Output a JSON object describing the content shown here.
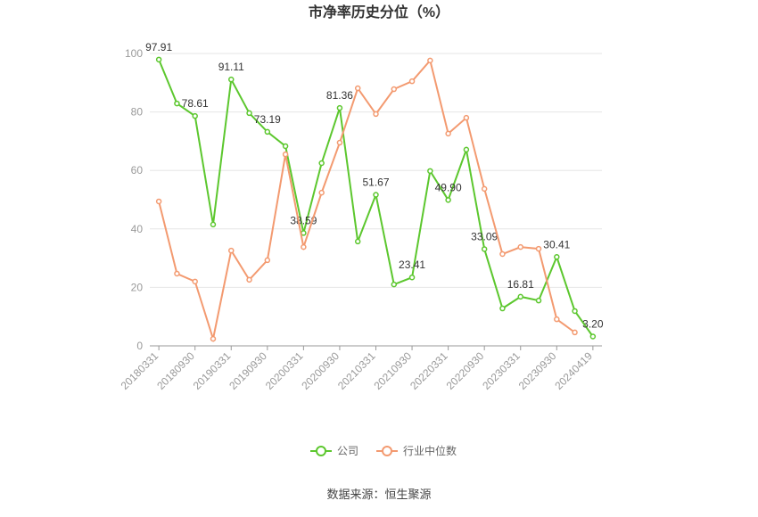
{
  "chart_data": {
    "type": "line",
    "title": "市净率历史分位（%）",
    "categories": [
      "20180331",
      null,
      "20180930",
      null,
      "20190331",
      null,
      "20190930",
      null,
      "20200331",
      null,
      "20200930",
      null,
      "20210331",
      null,
      "20210930",
      null,
      "20220331",
      null,
      "20220930",
      null,
      "20230331",
      null,
      "20230930",
      null,
      "20240419"
    ],
    "series": [
      {
        "name": "公司",
        "color": "#5cc72e",
        "values": [
          97.91,
          82.9,
          78.61,
          41.5,
          91.11,
          79.6,
          73.19,
          68.3,
          38.59,
          62.5,
          81.36,
          35.7,
          51.67,
          21.0,
          23.41,
          59.8,
          49.9,
          67.1,
          33.09,
          12.8,
          16.81,
          15.5,
          30.41,
          11.9,
          3.2
        ],
        "value_labels": [
          "97.91",
          null,
          "78.61",
          null,
          "91.11",
          null,
          "73.19",
          null,
          "38.59",
          null,
          "81.36",
          null,
          "51.67",
          null,
          "23.41",
          null,
          "49.90",
          null,
          "33.09",
          null,
          "16.81",
          null,
          "30.41",
          null,
          "3.20"
        ]
      },
      {
        "name": "行业中位数",
        "color": "#f39a70",
        "values": [
          49.4,
          24.7,
          22.0,
          2.4,
          32.6,
          22.6,
          29.3,
          65.5,
          33.8,
          52.4,
          69.5,
          88.1,
          79.3,
          87.8,
          90.5,
          97.6,
          72.6,
          78.0,
          53.7,
          31.4,
          33.8,
          33.2,
          9.1,
          4.6,
          null
        ]
      }
    ],
    "ylim": [
      0,
      100
    ],
    "yticks": [
      0,
      20,
      40,
      60,
      80,
      100
    ],
    "grid": true,
    "legend": "bottom",
    "source": "数据来源：恒生聚源"
  }
}
